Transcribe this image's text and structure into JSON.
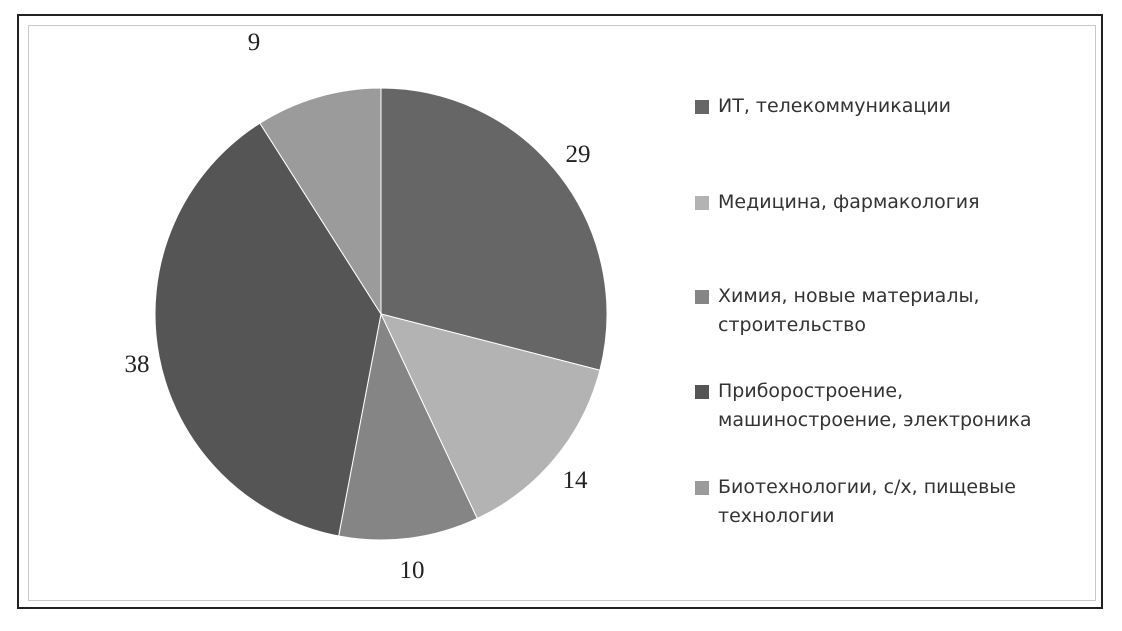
{
  "chart_data": {
    "type": "pie",
    "start_angle": "top, clockwise",
    "categories": [
      "ИТ, телекоммуникации",
      "Медицина, фармакология",
      "Химия, новые материалы, строительство",
      "Приборостроение, машиностроение, электроника",
      "Биотехнологии, с/х, пищевые технологии"
    ],
    "legend_lines": [
      [
        "ИТ, телекоммуникации"
      ],
      [
        "Медицина, фармакология"
      ],
      [
        "Химия, новые материалы,",
        "строительство"
      ],
      [
        "Приборостроение,",
        "машиностроение, электроника"
      ],
      [
        "Биотехнологии, с/х, пищевые",
        "технологии"
      ]
    ],
    "values": [
      29,
      14,
      10,
      38,
      9
    ],
    "data_labels": [
      "29",
      "14",
      "10",
      "38",
      "9"
    ],
    "colors": [
      "#666666",
      "#b3b3b3",
      "#858585",
      "#555555",
      "#9b9b9b"
    ],
    "legend_placement": "right"
  }
}
